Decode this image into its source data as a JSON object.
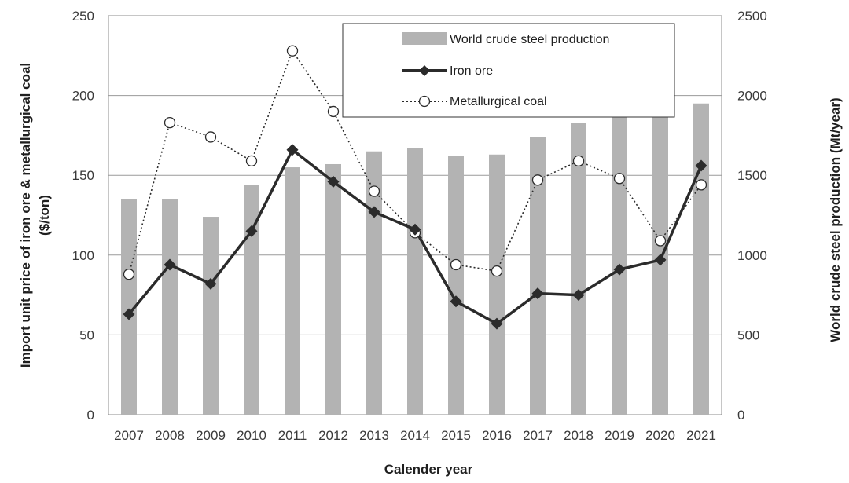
{
  "chart_data": {
    "type": "bar+line",
    "x": [
      "2007",
      "2008",
      "2009",
      "2010",
      "2011",
      "2012",
      "2013",
      "2014",
      "2015",
      "2016",
      "2017",
      "2018",
      "2019",
      "2020",
      "2021"
    ],
    "xlabel": "Calender year",
    "ylabel_left": "Import unit price of iron ore & metallurgical coal ($/ton)",
    "ylabel_left_lines": [
      "Import unit price of iron ore & metallurgical coal",
      "($/ton)"
    ],
    "ylabel_right": "World crude steel production (Mt/year)",
    "ylim_left": [
      0,
      250
    ],
    "yticks_left": [
      "0",
      "50",
      "100",
      "150",
      "200",
      "250"
    ],
    "ylim_right": [
      0,
      2500
    ],
    "yticks_right": [
      "0",
      "500",
      "1000",
      "1500",
      "2000",
      "2500"
    ],
    "grid": true,
    "legend_position": "top-right",
    "series": [
      {
        "name": "World crude steel production",
        "type": "bar",
        "axis": "right",
        "color": "#b3b3b3",
        "values": [
          1350,
          1350,
          1240,
          1440,
          1550,
          1570,
          1650,
          1670,
          1620,
          1630,
          1740,
          1830,
          1880,
          1880,
          1950
        ]
      },
      {
        "name": "Iron ore",
        "type": "line",
        "axis": "left",
        "color": "#2b2b2b",
        "marker": "diamond",
        "values": [
          63,
          94,
          82,
          115,
          166,
          146,
          127,
          116,
          71,
          57,
          76,
          75,
          91,
          97,
          156
        ]
      },
      {
        "name": "Metallurgical coal",
        "type": "line",
        "axis": "left",
        "color": "#2b2b2b",
        "marker": "open-circle",
        "style": "dotted",
        "values": [
          88,
          183,
          174,
          159,
          228,
          190,
          140,
          114,
          94,
          90,
          147,
          159,
          148,
          109,
          144
        ]
      }
    ]
  }
}
